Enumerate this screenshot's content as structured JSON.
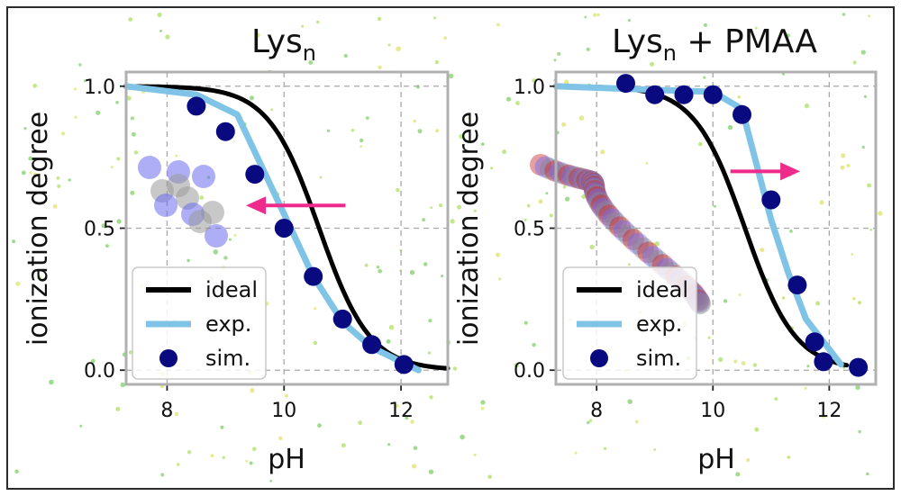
{
  "chart_data": [
    {
      "type": "line",
      "title": "Lys",
      "title_subscript": "n",
      "xlabel": "pH",
      "ylabel": "ionization degree",
      "xlim": [
        7.3,
        12.8
      ],
      "ylim": [
        -0.05,
        1.05
      ],
      "xticks": [
        8,
        10,
        12
      ],
      "yticks": [
        0.0,
        0.5,
        1.0
      ],
      "xtick_labels": [
        "8",
        "10",
        "12"
      ],
      "ytick_labels": [
        "0.0",
        "0.5",
        "1.0"
      ],
      "grid": true,
      "legend_position": "lower-left",
      "arrow": {
        "from": [
          11.05,
          0.58
        ],
        "to": [
          9.35,
          0.58
        ],
        "color": "#ee2a8a"
      },
      "series": [
        {
          "name": "ideal",
          "kind": "line",
          "color": "#000000",
          "pKa": 10.6,
          "x_start": 7.3,
          "x_end": 12.8
        },
        {
          "name": "exp.",
          "kind": "line",
          "color": "#7fc4e6",
          "x": [
            7.3,
            8.5,
            9.2,
            10.0,
            10.5,
            11.0,
            11.5,
            12.3
          ],
          "y": [
            1.0,
            0.97,
            0.9,
            0.55,
            0.33,
            0.17,
            0.08,
            0.0
          ]
        },
        {
          "name": "sim.",
          "kind": "scatter",
          "color": "#0a0a80",
          "x": [
            8.5,
            9.0,
            9.5,
            10.0,
            10.5,
            11.0,
            11.5,
            12.05
          ],
          "y": [
            0.93,
            0.84,
            0.69,
            0.5,
            0.33,
            0.18,
            0.09,
            0.02
          ]
        }
      ]
    },
    {
      "type": "line",
      "title": "Lys",
      "title_subscript": "n",
      "title_suffix": " + PMAA",
      "xlabel": "pH",
      "ylabel": "ionization degree",
      "xlim": [
        7.3,
        12.8
      ],
      "ylim": [
        -0.05,
        1.05
      ],
      "xticks": [
        8,
        10,
        12
      ],
      "yticks": [
        0.0,
        0.5,
        1.0
      ],
      "xtick_labels": [
        "8",
        "10",
        "12"
      ],
      "ytick_labels": [
        "0.0",
        "0.5",
        "1.0"
      ],
      "grid": true,
      "legend_position": "lower-left",
      "arrow": {
        "from": [
          10.3,
          0.7
        ],
        "to": [
          11.5,
          0.7
        ],
        "color": "#ee2a8a"
      },
      "series": [
        {
          "name": "ideal",
          "kind": "line",
          "color": "#000000",
          "pKa": 10.55,
          "x_start": 7.3,
          "x_end": 12.3
        },
        {
          "name": "exp.",
          "kind": "line",
          "color": "#7fc4e6",
          "x": [
            7.3,
            10.0,
            10.5,
            11.0,
            11.3,
            11.6,
            12.2
          ],
          "y": [
            1.0,
            0.98,
            0.92,
            0.53,
            0.34,
            0.18,
            0.02
          ]
        },
        {
          "name": "sim.",
          "kind": "scatter",
          "color": "#0a0a80",
          "x": [
            8.5,
            9.0,
            9.5,
            10.0,
            10.5,
            11.0,
            11.45,
            11.75,
            11.9,
            12.5
          ],
          "y": [
            1.01,
            0.97,
            0.97,
            0.97,
            0.9,
            0.6,
            0.3,
            0.1,
            0.03,
            0.01
          ]
        }
      ]
    }
  ],
  "decoration": {
    "background_dot_colors": [
      "#9fdc8e",
      "#e6ea8e",
      "#c3e88a"
    ],
    "lys_molecule_colors": [
      "#6c6cf0",
      "#9a9a9a"
    ],
    "pmaa_molecule_colors": [
      "#cc2a2a",
      "#6c6cf0",
      "#8a8a8a"
    ]
  }
}
